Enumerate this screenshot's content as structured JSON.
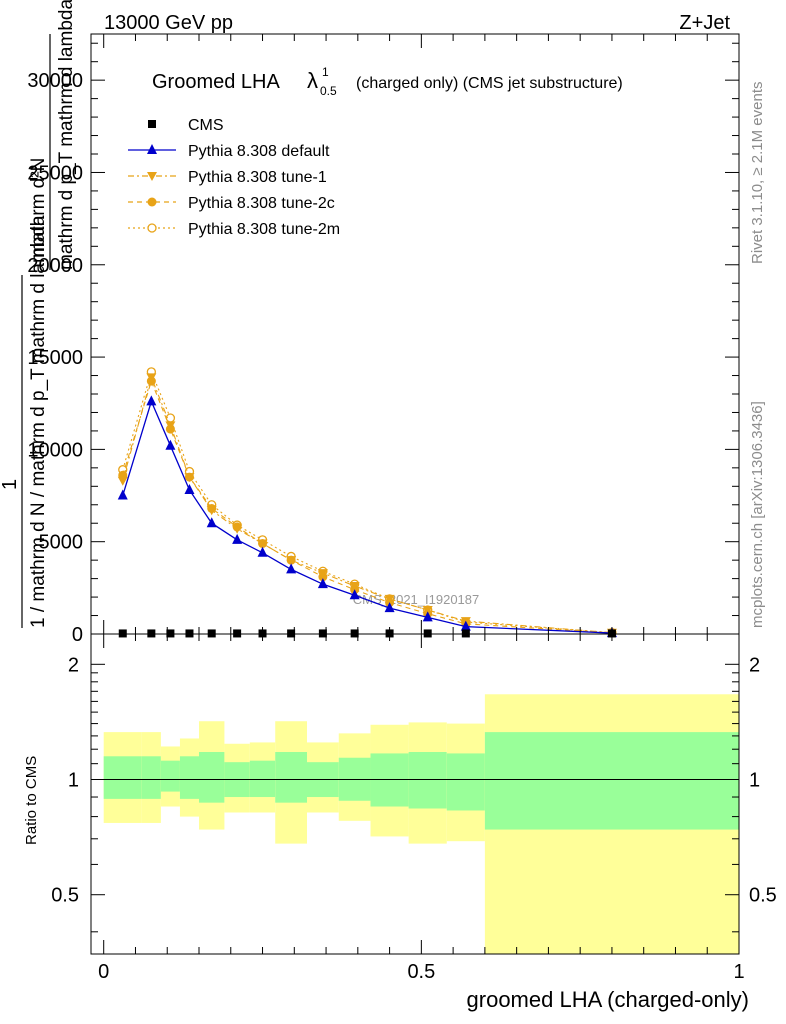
{
  "header": {
    "energy_label": "13000 GeV pp",
    "process_label": "Z+Jet"
  },
  "side_labels": {
    "rivet": "Rivet 3.1.10, ≥ 2.1M events",
    "mcplots": "mcplots.cern.ch [arXiv:1306.3436]"
  },
  "main_plot": {
    "title": "Groomed LHA",
    "title_symbol": "λ",
    "title_sup": "1",
    "title_sub": "0.5",
    "title_suffix": "(charged only) (CMS jet substructure)",
    "ylabel_numerator": "mathrm d²N",
    "ylabel_denominator": "mathrm d p_T mathrm d lambda",
    "ylabel_full": "1 / mathrm d N / mathrm d p_T mathrm d lambda",
    "watermark": "CMS_2021_I1920187",
    "ytick_labels": [
      "0",
      "5000",
      "10000",
      "15000",
      "20000",
      "25000",
      "30000"
    ]
  },
  "ratio_plot": {
    "ylabel": "Ratio to CMS",
    "ytick_labels": [
      "0.5",
      "1",
      "2"
    ]
  },
  "xaxis": {
    "label": "groomed LHA (charged-only)",
    "tick_labels": [
      "0",
      "0.5",
      "1"
    ]
  },
  "colors": {
    "default": "#0000cc",
    "tunes": "#e8a317",
    "band_inner": "#99ff99",
    "band_outer": "#ffff99",
    "data": "#000000"
  },
  "chart_data": {
    "type": "line",
    "title": "Groomed LHA λ^1_0.5 (charged only) (CMS jet substructure)",
    "xlabel": "groomed LHA (charged-only)",
    "ylabel": "1 / mathrm d N / mathrm d p_T mathrm d lambda",
    "xlim": [
      -0.02,
      1.0
    ],
    "ylim": [
      0,
      32500
    ],
    "bin_edges": [
      0.0,
      0.06,
      0.09,
      0.12,
      0.15,
      0.19,
      0.23,
      0.27,
      0.32,
      0.37,
      0.42,
      0.48,
      0.54,
      0.6,
      1.0
    ],
    "x": [
      0.03,
      0.075,
      0.105,
      0.135,
      0.17,
      0.21,
      0.25,
      0.295,
      0.345,
      0.395,
      0.45,
      0.51,
      0.57,
      0.8
    ],
    "legend_position": "top-left",
    "series": [
      {
        "name": "CMS",
        "marker": "square",
        "values": [
          30,
          30,
          30,
          30,
          30,
          30,
          30,
          30,
          30,
          30,
          30,
          30,
          30,
          30
        ]
      },
      {
        "name": "Pythia 8.308 default",
        "marker": "triangle-up",
        "values": [
          7500,
          12600,
          10200,
          7800,
          6000,
          5100,
          4400,
          3500,
          2700,
          2100,
          1400,
          900,
          400,
          50
        ]
      },
      {
        "name": "Pythia 8.308 tune-1",
        "marker": "triangle-down",
        "values": [
          8300,
          13900,
          11300,
          8500,
          6700,
          5700,
          4900,
          4000,
          3300,
          2600,
          1900,
          1300,
          700,
          70
        ]
      },
      {
        "name": "Pythia 8.308 tune-2c",
        "marker": "circle-filled",
        "values": [
          8600,
          13700,
          11100,
          8500,
          6800,
          5800,
          4900,
          4000,
          3100,
          2400,
          1700,
          1100,
          550,
          60
        ]
      },
      {
        "name": "Pythia 8.308 tune-2m",
        "marker": "circle-open",
        "values": [
          8900,
          14200,
          11700,
          8800,
          7000,
          5900,
          5100,
          4200,
          3400,
          2700,
          1900,
          1300,
          650,
          70
        ]
      }
    ],
    "ratio": {
      "ylabel": "Ratio to CMS",
      "ylim": [
        0.35,
        2.4
      ],
      "log_scale": true,
      "band_inner": [
        [
          0.89,
          1.15
        ],
        [
          0.89,
          1.15
        ],
        [
          0.93,
          1.12
        ],
        [
          0.89,
          1.15
        ],
        [
          0.87,
          1.18
        ],
        [
          0.9,
          1.11
        ],
        [
          0.9,
          1.12
        ],
        [
          0.87,
          1.18
        ],
        [
          0.9,
          1.11
        ],
        [
          0.88,
          1.14
        ],
        [
          0.85,
          1.17
        ],
        [
          0.84,
          1.18
        ],
        [
          0.83,
          1.17
        ],
        [
          0.72,
          1.34
        ],
        [
          0.74,
          1.33
        ]
      ],
      "band_outer": [
        [
          0.77,
          1.33
        ],
        [
          0.77,
          1.33
        ],
        [
          0.85,
          1.22
        ],
        [
          0.8,
          1.28
        ],
        [
          0.74,
          1.42
        ],
        [
          0.82,
          1.24
        ],
        [
          0.82,
          1.25
        ],
        [
          0.68,
          1.42
        ],
        [
          0.82,
          1.25
        ],
        [
          0.78,
          1.32
        ],
        [
          0.71,
          1.39
        ],
        [
          0.68,
          1.41
        ],
        [
          0.69,
          1.4
        ],
        [
          0.35,
          1.7
        ],
        [
          0.35,
          1.67
        ]
      ]
    }
  }
}
